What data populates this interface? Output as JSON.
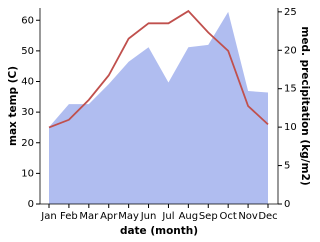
{
  "chart_data": {
    "type": "line",
    "x_label": "date (month)",
    "y_label": "max temp (C)",
    "y2_label": "med. precipitation (kg/m2)",
    "categories": [
      "Jan",
      "Feb",
      "Mar",
      "Apr",
      "May",
      "Jun",
      "Jul",
      "Aug",
      "Sep",
      "Oct",
      "Nov",
      "Dec"
    ],
    "series": [
      {
        "kind": "area",
        "axis": "y2",
        "color": "#b0bdf0",
        "values": [
          10,
          13,
          13,
          15.6,
          18.5,
          20.4,
          15.8,
          20.4,
          20.7,
          25,
          14.7,
          14.5
        ]
      },
      {
        "kind": "line",
        "color": "#c0504d",
        "values": [
          25,
          27.5,
          34,
          42,
          54,
          59,
          59,
          63,
          56,
          50,
          32,
          26
        ]
      }
    ],
    "ylim": [
      0,
      64
    ],
    "yticks": [
      0,
      10,
      20,
      30,
      40,
      50,
      60
    ],
    "y2lim": [
      0,
      25.5
    ],
    "y2ticks": [
      0,
      5,
      10,
      15,
      20,
      25
    ]
  }
}
